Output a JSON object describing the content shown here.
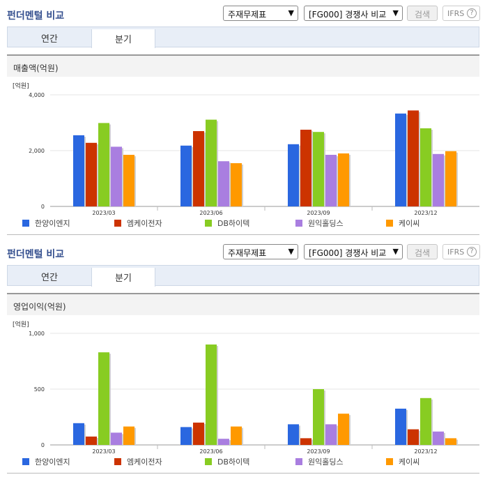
{
  "colors": {
    "s1": "#2a67e0",
    "s2": "#cc3300",
    "s3": "#88cc22",
    "s4": "#a97ee0",
    "s5": "#ff9900"
  },
  "panels": [
    {
      "title": "펀더멘털 비교",
      "select1": "주재무제표",
      "select2": "[FG000] 경쟁사 비교",
      "search_btn": "검색",
      "ifrs": "IFRS",
      "help": "?",
      "tabs": [
        "연간",
        "분기"
      ],
      "section": "매출액(억원)"
    },
    {
      "title": "펀더멘털 비교",
      "select1": "주재무제표",
      "select2": "[FG000] 경쟁사 비교",
      "search_btn": "검색",
      "ifrs": "IFRS",
      "help": "?",
      "tabs": [
        "연간",
        "분기"
      ],
      "section": "영업이익(억원)"
    }
  ],
  "chart_data": [
    {
      "type": "bar",
      "unit_label": "[억원]",
      "categories": [
        "2023/03",
        "2023/06",
        "2023/09",
        "2023/12"
      ],
      "ylim": [
        0,
        4000
      ],
      "yticks": [
        "0",
        "2,000",
        "4,000"
      ],
      "ytick_values": [
        0,
        2000,
        4000
      ],
      "series": [
        {
          "name": "한양이엔지",
          "values": [
            2550,
            2180,
            2230,
            3330
          ]
        },
        {
          "name": "엠케이전자",
          "values": [
            2280,
            2700,
            2750,
            3440
          ]
        },
        {
          "name": "DB하이텍",
          "values": [
            2990,
            3110,
            2670,
            2800
          ]
        },
        {
          "name": "원익홀딩스",
          "values": [
            2140,
            1620,
            1850,
            1880
          ]
        },
        {
          "name": "케이씨",
          "values": [
            1850,
            1550,
            1900,
            1980
          ]
        }
      ]
    },
    {
      "type": "bar",
      "unit_label": "[억원]",
      "categories": [
        "2023/03",
        "2023/06",
        "2023/09",
        "2023/12"
      ],
      "ylim": [
        0,
        1000
      ],
      "yticks": [
        "0",
        "500",
        "1,000"
      ],
      "ytick_values": [
        0,
        500,
        1000
      ],
      "series": [
        {
          "name": "한양이엔지",
          "values": [
            195,
            160,
            185,
            325
          ]
        },
        {
          "name": "엠케이전자",
          "values": [
            75,
            200,
            60,
            140
          ]
        },
        {
          "name": "DB하이텍",
          "values": [
            830,
            900,
            500,
            420
          ]
        },
        {
          "name": "원익홀딩스",
          "values": [
            110,
            55,
            185,
            120
          ]
        },
        {
          "name": "케이씨",
          "values": [
            165,
            165,
            280,
            60
          ]
        }
      ]
    }
  ]
}
